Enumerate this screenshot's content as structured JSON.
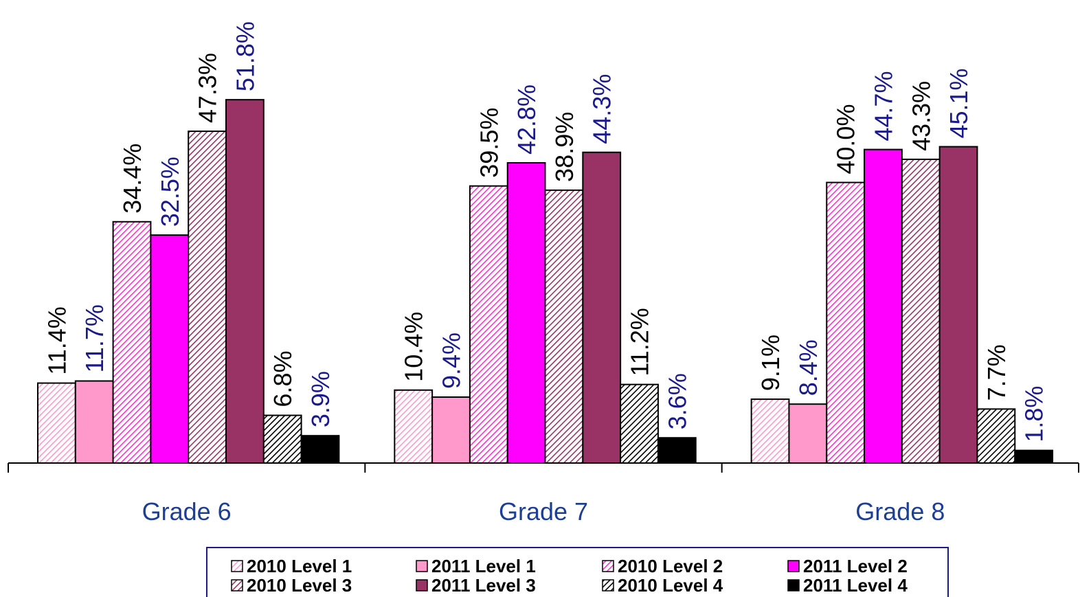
{
  "chart_data": {
    "type": "bar",
    "categories": [
      "Grade 6",
      "Grade 7",
      "Grade 8"
    ],
    "ylim": [
      0,
      60
    ],
    "series": [
      {
        "name": "2010 Level 1",
        "color": "#ff99cc",
        "hatched": true,
        "label_color": "#000000",
        "values": [
          11.4,
          10.4,
          9.1
        ],
        "value_labels": [
          "11.4%",
          "10.4%",
          "9.1%"
        ]
      },
      {
        "name": "2011 Level 1",
        "color": "#ff99cc",
        "hatched": false,
        "label_color": "#1a1a8c",
        "values": [
          11.7,
          9.4,
          8.4
        ],
        "value_labels": [
          "11.7%",
          "9.4%",
          "8.4%"
        ]
      },
      {
        "name": "2010 Level 2",
        "color": "#ff33cc",
        "hatched": true,
        "label_color": "#000000",
        "values": [
          34.4,
          39.5,
          40.0
        ],
        "value_labels": [
          "34.4%",
          "39.5%",
          "40.0%"
        ]
      },
      {
        "name": "2011 Level 2",
        "color": "#ff00ff",
        "hatched": false,
        "label_color": "#1a1a8c",
        "values": [
          32.5,
          42.8,
          44.7
        ],
        "value_labels": [
          "32.5%",
          "42.8%",
          "44.7%"
        ]
      },
      {
        "name": "2010 Level 3",
        "color": "#993366",
        "hatched": true,
        "label_color": "#000000",
        "values": [
          47.3,
          38.9,
          43.3
        ],
        "value_labels": [
          "47.3%",
          "38.9%",
          "43.3%"
        ]
      },
      {
        "name": "2011 Level 3",
        "color": "#993366",
        "hatched": false,
        "label_color": "#1a1a8c",
        "values": [
          51.8,
          44.3,
          45.1
        ],
        "value_labels": [
          "51.8%",
          "44.3%",
          "45.1%"
        ]
      },
      {
        "name": "2010 Level 4",
        "color": "#000000",
        "hatched": true,
        "label_color": "#000000",
        "values": [
          6.8,
          11.2,
          7.7
        ],
        "value_labels": [
          "6.8%",
          "11.2%",
          "7.7%"
        ]
      },
      {
        "name": "2011 Level 4",
        "color": "#000000",
        "hatched": false,
        "label_color": "#1a1a8c",
        "values": [
          3.9,
          3.6,
          1.8
        ],
        "value_labels": [
          "3.9%",
          "3.6%",
          "1.8%"
        ]
      }
    ]
  }
}
